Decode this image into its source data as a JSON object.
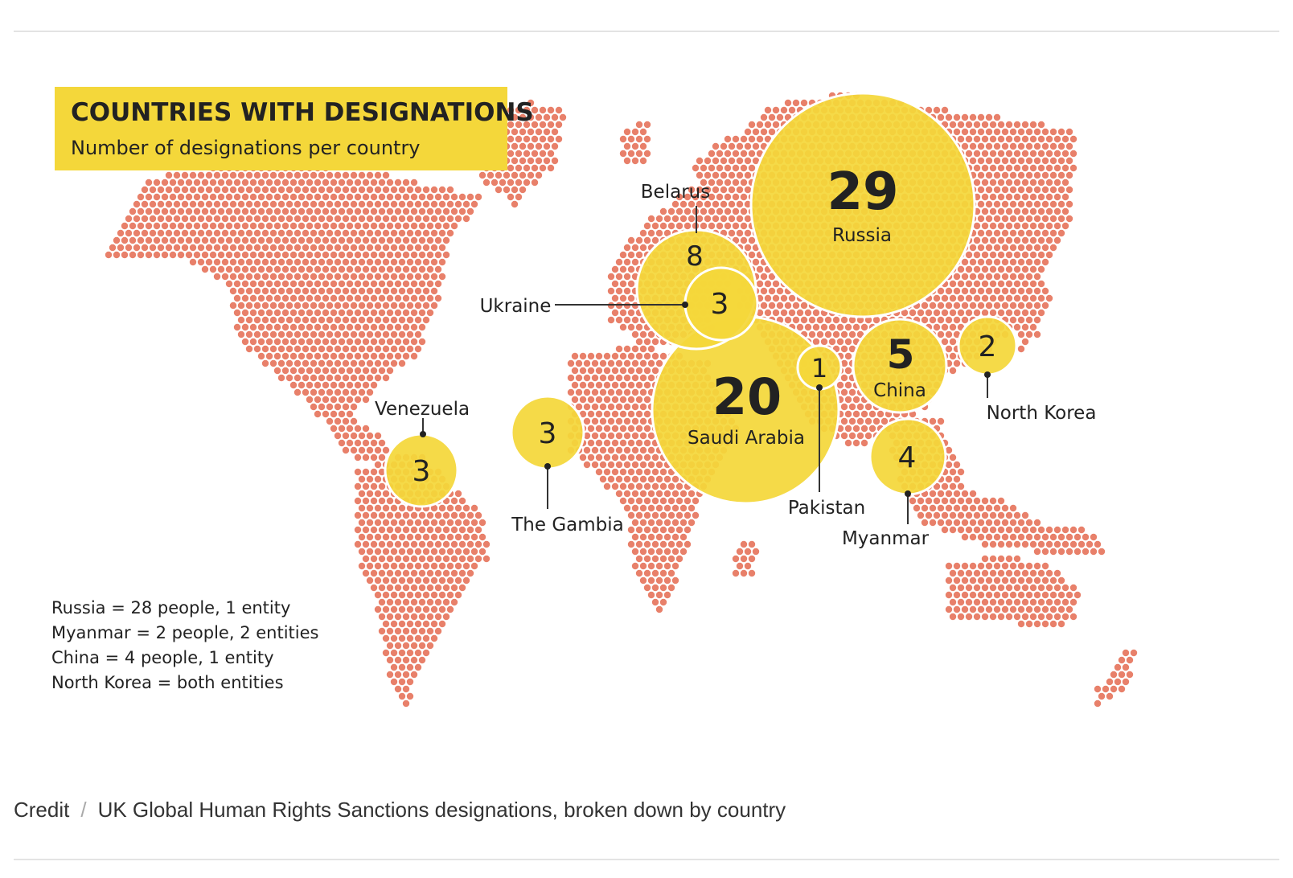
{
  "header": {
    "title": "COUNTRIES WITH DESIGNATIONS",
    "subtitle": "Number of designations per country"
  },
  "colors": {
    "land_dot": "#e8806a",
    "bubble": "#f4d73a",
    "bubble_stroke": "#ffffff",
    "title_box": "#f4d73a",
    "text": "#222222"
  },
  "markers": [
    {
      "id": "russia",
      "country": "Russia",
      "value": "29"
    },
    {
      "id": "saudi-arabia",
      "country": "Saudi Arabia",
      "value": "20"
    },
    {
      "id": "belarus",
      "country": "Belarus",
      "value": "8"
    },
    {
      "id": "china",
      "country": "China",
      "value": "5"
    },
    {
      "id": "myanmar",
      "country": "Myanmar",
      "value": "4"
    },
    {
      "id": "ukraine",
      "country": "Ukraine",
      "value": "3"
    },
    {
      "id": "venezuela",
      "country": "Venezuela",
      "value": "3"
    },
    {
      "id": "the-gambia",
      "country": "The Gambia",
      "value": "3"
    },
    {
      "id": "north-korea",
      "country": "North Korea",
      "value": "2"
    },
    {
      "id": "pakistan",
      "country": "Pakistan",
      "value": "1"
    }
  ],
  "notes": [
    "Russia = 28 people, 1 entity",
    "Myanmar = 2 people, 2 entities",
    "China = 4 people, 1 entity",
    "North Korea = both entities"
  ],
  "caption": {
    "credit_label": "Credit",
    "separator": "/",
    "text": "UK Global Human Rights Sanctions designations, broken down by country"
  }
}
